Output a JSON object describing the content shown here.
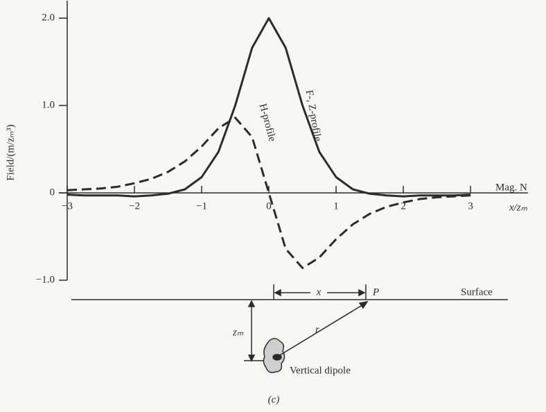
{
  "chart_data": {
    "type": "line",
    "y_label": "Field/(m/zₘ³)",
    "x_label": "x/zₘ",
    "axis_note": "Mag. N",
    "x": [
      -3,
      -2.75,
      -2.5,
      -2.25,
      -2,
      -1.75,
      -1.5,
      -1.25,
      -1,
      -0.75,
      -0.5,
      -0.25,
      0,
      0.25,
      0.5,
      0.75,
      1,
      1.25,
      1.5,
      1.75,
      2,
      2.25,
      2.5,
      2.75,
      3
    ],
    "series": [
      {
        "name": "F-, Z-profile",
        "color": "#2b2b2b",
        "style": "solid",
        "values": [
          -0.02,
          -0.03,
          -0.03,
          -0.03,
          -0.04,
          -0.03,
          -0.01,
          0.04,
          0.18,
          0.47,
          1.0,
          1.66,
          2.0,
          1.66,
          1.0,
          0.47,
          0.18,
          0.04,
          -0.01,
          -0.03,
          -0.04,
          -0.03,
          -0.03,
          -0.03,
          -0.02
        ]
      },
      {
        "name": "H-profile",
        "color": "#2b2b2b",
        "style": "dashed",
        "values": [
          0.03,
          0.04,
          0.05,
          0.07,
          0.11,
          0.16,
          0.24,
          0.36,
          0.53,
          0.74,
          0.86,
          0.64,
          0,
          -0.64,
          -0.86,
          -0.74,
          -0.53,
          -0.36,
          -0.24,
          -0.16,
          -0.11,
          -0.07,
          -0.05,
          -0.04,
          -0.03
        ]
      }
    ],
    "xlim": [
      -3,
      3.7
    ],
    "ylim": [
      -1.0,
      2.2
    ],
    "xticks": [
      {
        "value": -3,
        "label": "−3"
      },
      {
        "value": -2,
        "label": "−2"
      },
      {
        "value": -1,
        "label": "−1"
      },
      0,
      1,
      2,
      3
    ],
    "yticks": [
      {
        "value": -1,
        "label": "−1.0"
      },
      0,
      {
        "value": 1,
        "label": "1.0"
      },
      {
        "value": 2,
        "label": "2.0"
      }
    ],
    "grid": false
  },
  "diagram": {
    "surface": "Surface",
    "x": "x",
    "point": "P",
    "r": "r",
    "depth": "zₘ",
    "source": "Vertical dipole"
  },
  "caption": "(c)"
}
